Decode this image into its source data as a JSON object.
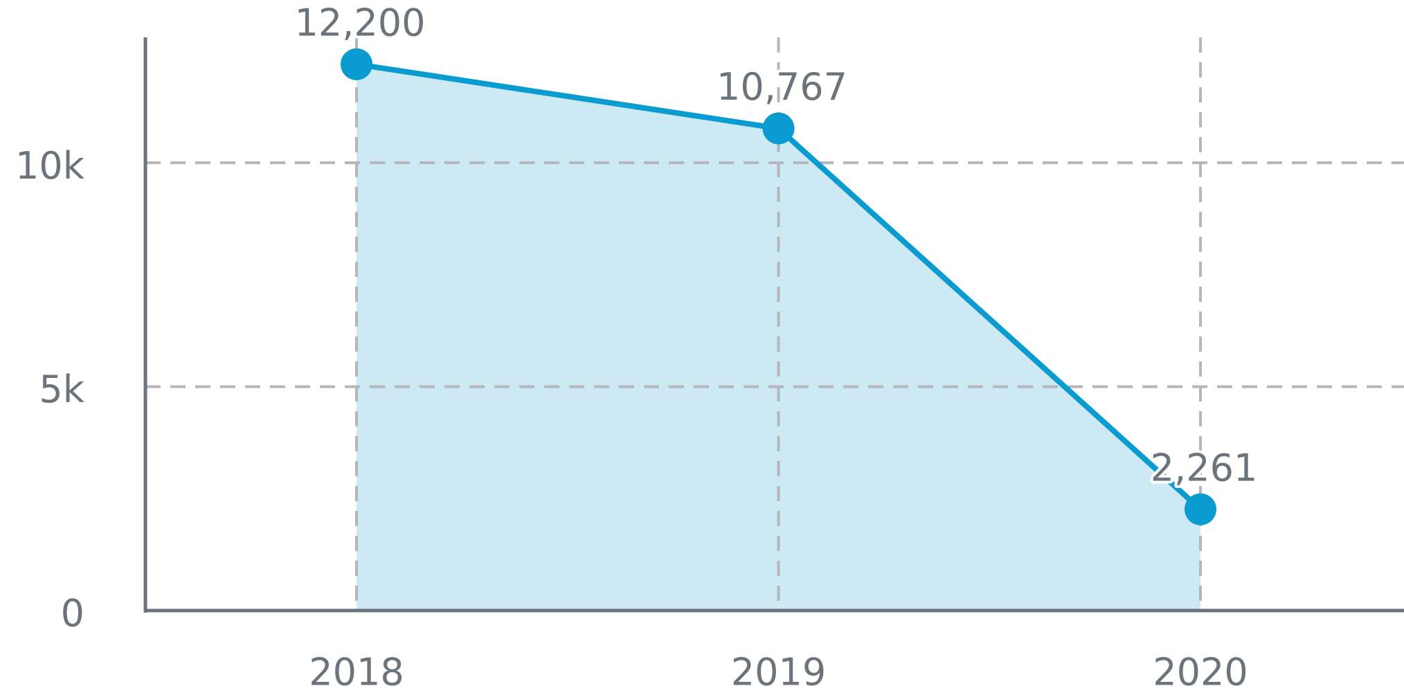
{
  "chart_data": {
    "type": "line",
    "categories": [
      "2018",
      "2019",
      "2020"
    ],
    "series": [
      {
        "color": "#0a9bd0",
        "fill": "#cde9f4",
        "values": [
          12200,
          10767,
          2261
        ],
        "value_labels": [
          "12,200",
          "10,767",
          "2,261"
        ]
      }
    ],
    "ylim": [
      0,
      12800
    ],
    "yticks": [
      0,
      {
        "value": 5000,
        "label": "5k"
      },
      {
        "value": 10000,
        "label": "10k"
      }
    ],
    "grid": true
  }
}
